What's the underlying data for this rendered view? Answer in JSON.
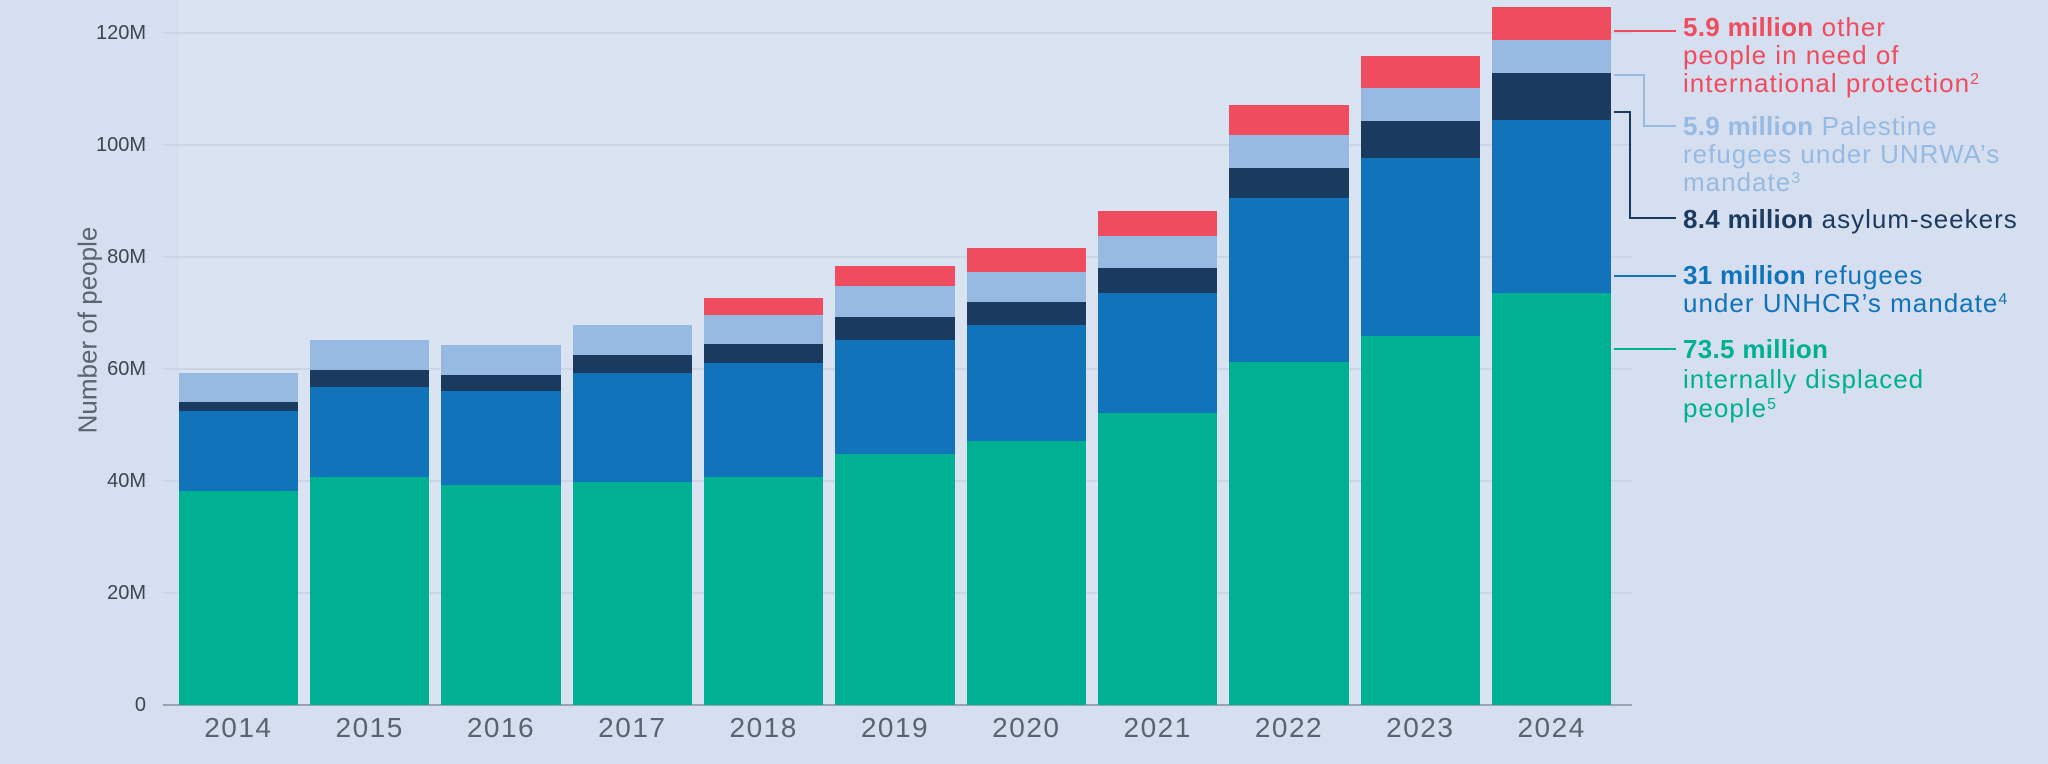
{
  "y_axis": {
    "title": "Number of people",
    "tick_labels": [
      "0",
      "20M",
      "40M",
      "60M",
      "80M",
      "100M",
      "120M"
    ],
    "tick_values": [
      0,
      20,
      40,
      60,
      80,
      100,
      120
    ]
  },
  "chart_data": {
    "type": "bar",
    "stacked": true,
    "title": "",
    "xlabel": "",
    "ylabel": "Number of people",
    "ylim": [
      0,
      126
    ],
    "grid": true,
    "legend_position": "right",
    "categories": [
      "2014",
      "2015",
      "2016",
      "2017",
      "2018",
      "2019",
      "2020",
      "2021",
      "2022",
      "2023",
      "2024"
    ],
    "unit": "millions of people",
    "series": [
      {
        "name": "internally displaced people",
        "color": "#00b093",
        "values": [
          38.2,
          40.8,
          39.2,
          39.8,
          40.7,
          44.8,
          47.1,
          52.2,
          61.3,
          65.9,
          73.5
        ]
      },
      {
        "name": "refugees under UNHCR's mandate",
        "color": "#1173ba",
        "values": [
          14.3,
          16.0,
          16.9,
          19.5,
          20.3,
          20.4,
          20.8,
          21.3,
          29.3,
          31.7,
          31.0
        ]
      },
      {
        "name": "asylum-seekers",
        "color": "#1b3a5f",
        "values": [
          1.6,
          3.0,
          2.8,
          3.2,
          3.5,
          4.0,
          4.1,
          4.5,
          5.3,
          6.7,
          8.4
        ]
      },
      {
        "name": "Palestine refugees under UNRWA's mandate",
        "color": "#97bae3",
        "values": [
          5.2,
          5.3,
          5.3,
          5.4,
          5.1,
          5.6,
          5.4,
          5.8,
          5.9,
          5.8,
          5.9
        ]
      },
      {
        "name": "other people in need of international protection",
        "color": "#ef4c5f",
        "values": [
          0,
          0,
          0,
          0,
          3.0,
          3.6,
          4.2,
          4.4,
          5.3,
          5.8,
          5.9
        ]
      }
    ]
  },
  "legend": [
    {
      "key": "other-people-in-need-of-international-protection",
      "color": "#ef4c5f",
      "lines": [
        [
          {
            "t": "5.9 million",
            "b": 1
          },
          {
            "t": " other"
          }
        ],
        [
          {
            "t": "people in need of"
          }
        ],
        [
          {
            "t": "international protection"
          },
          {
            "t": "2",
            "sup": 1
          }
        ]
      ]
    },
    {
      "key": "palestine-refugees-unrwa",
      "color": "#97bae3",
      "lines": [
        [
          {
            "t": "5.9 million",
            "b": 1
          },
          {
            "t": " Palestine"
          }
        ],
        [
          {
            "t": "refugees under UNRWA’s"
          }
        ],
        [
          {
            "t": "mandate"
          },
          {
            "t": "3",
            "sup": 1
          }
        ]
      ]
    },
    {
      "key": "asylum-seekers",
      "color": "#1b3a5f",
      "lines": [
        [
          {
            "t": "8.4 million",
            "b": 1
          },
          {
            "t": " asylum-seekers"
          }
        ]
      ]
    },
    {
      "key": "refugees-unhcr",
      "color": "#1173ba",
      "lines": [
        [
          {
            "t": "31 million",
            "b": 1
          },
          {
            "t": " refugees"
          }
        ],
        [
          {
            "t": "under UNHCR’s mandate"
          },
          {
            "t": "4",
            "sup": 1
          }
        ]
      ]
    },
    {
      "key": "internally-displaced-people",
      "color": "#00b093",
      "lines": [
        [
          {
            "t": "73.5 million",
            "b": 1
          }
        ],
        [
          {
            "t": "internally displaced"
          }
        ],
        [
          {
            "t": "people"
          },
          {
            "t": "5",
            "sup": 1
          }
        ]
      ]
    }
  ]
}
